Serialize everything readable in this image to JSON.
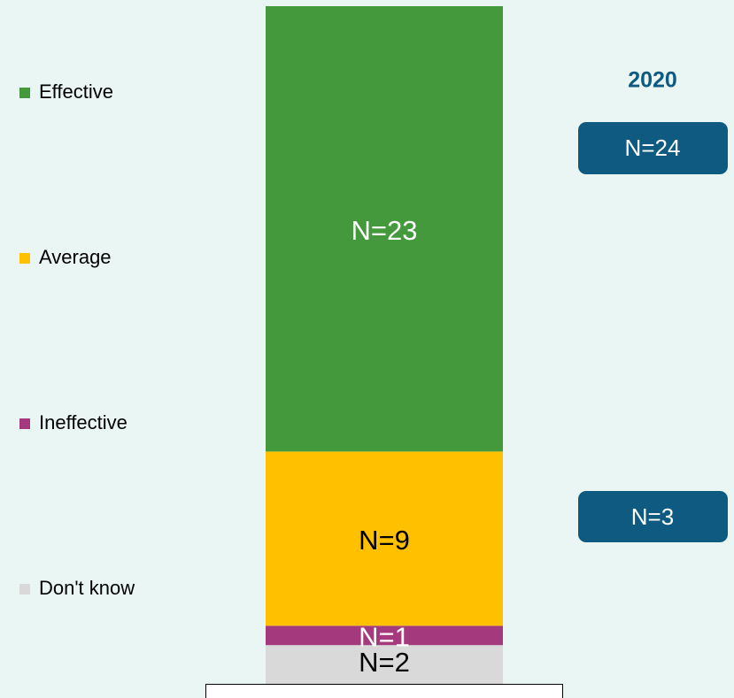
{
  "chart_data": {
    "type": "stacked_bar",
    "categories": [
      "2020"
    ],
    "series": [
      {
        "name": "Effective",
        "color": "#43993c",
        "label_color": "#ffffff",
        "values": [
          23
        ],
        "value_labels": [
          "N=23"
        ]
      },
      {
        "name": "Average",
        "color": "#ffc000",
        "label_color": "#000000",
        "values": [
          9
        ],
        "value_labels": [
          "N=9"
        ]
      },
      {
        "name": "Ineffective",
        "color": "#a5397e",
        "label_color": "#ffffff",
        "values": [
          1
        ],
        "value_labels": [
          "N=1"
        ]
      },
      {
        "name": "Don't know",
        "color": "#d9d9d9",
        "label_color": "#000000",
        "values": [
          2
        ],
        "value_labels": [
          "N=2"
        ]
      }
    ],
    "annotations": [
      {
        "text": "N=24"
      },
      {
        "text": "N=3"
      }
    ]
  }
}
